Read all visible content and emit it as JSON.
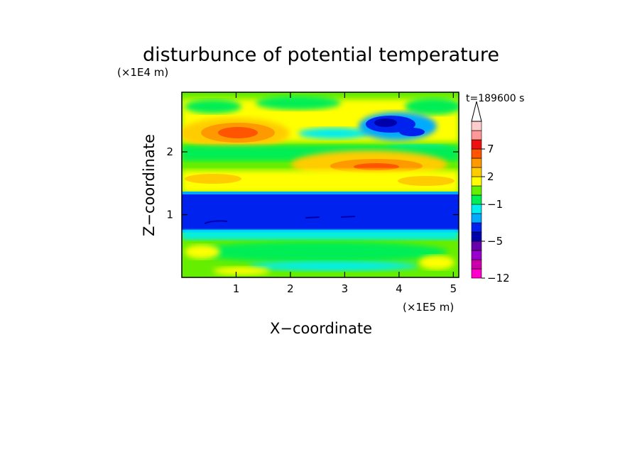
{
  "chart_data": {
    "type": "heatmap",
    "title": "disturbunce of potential temperature",
    "xlabel": "X−coordinate",
    "ylabel": "Z−coordinate",
    "x_unit": "(×1E5 m)",
    "y_unit": "(×1E4 m)",
    "time_label": "t=189600 s",
    "xlim": [
      0,
      5.1
    ],
    "ylim": [
      0,
      2.95
    ],
    "x_ticks": [
      1,
      2,
      3,
      4,
      5
    ],
    "y_ticks": [
      1,
      2
    ],
    "grid": false,
    "colorbar": {
      "levels": [
        -12,
        -11,
        -9,
        -7,
        -5,
        -4,
        -3,
        -2,
        -1,
        0,
        1,
        2,
        3,
        5,
        7,
        9,
        11
      ],
      "tick_labels": [
        "7",
        "2",
        "−1",
        "−5",
        "−12"
      ],
      "colors": [
        "#ff00cc",
        "#cc00aa",
        "#9900cc",
        "#6600aa",
        "#0000aa",
        "#0022ee",
        "#00aaff",
        "#00eeee",
        "#00ee55",
        "#66ee00",
        "#ffff00",
        "#ffcc00",
        "#ff9900",
        "#ff5500",
        "#ee1111",
        "#ff9999",
        "#ffcccc"
      ]
    },
    "features": [
      {
        "x": 1.0,
        "z": 2.35,
        "value": 3
      },
      {
        "x": 3.5,
        "z": 1.8,
        "value": 3
      },
      {
        "x": 3.7,
        "z": 2.5,
        "value": -5
      },
      {
        "x": 2.5,
        "z": 1.05,
        "value": -3
      },
      {
        "x": 2.5,
        "z": 0.5,
        "value": 0
      }
    ]
  }
}
